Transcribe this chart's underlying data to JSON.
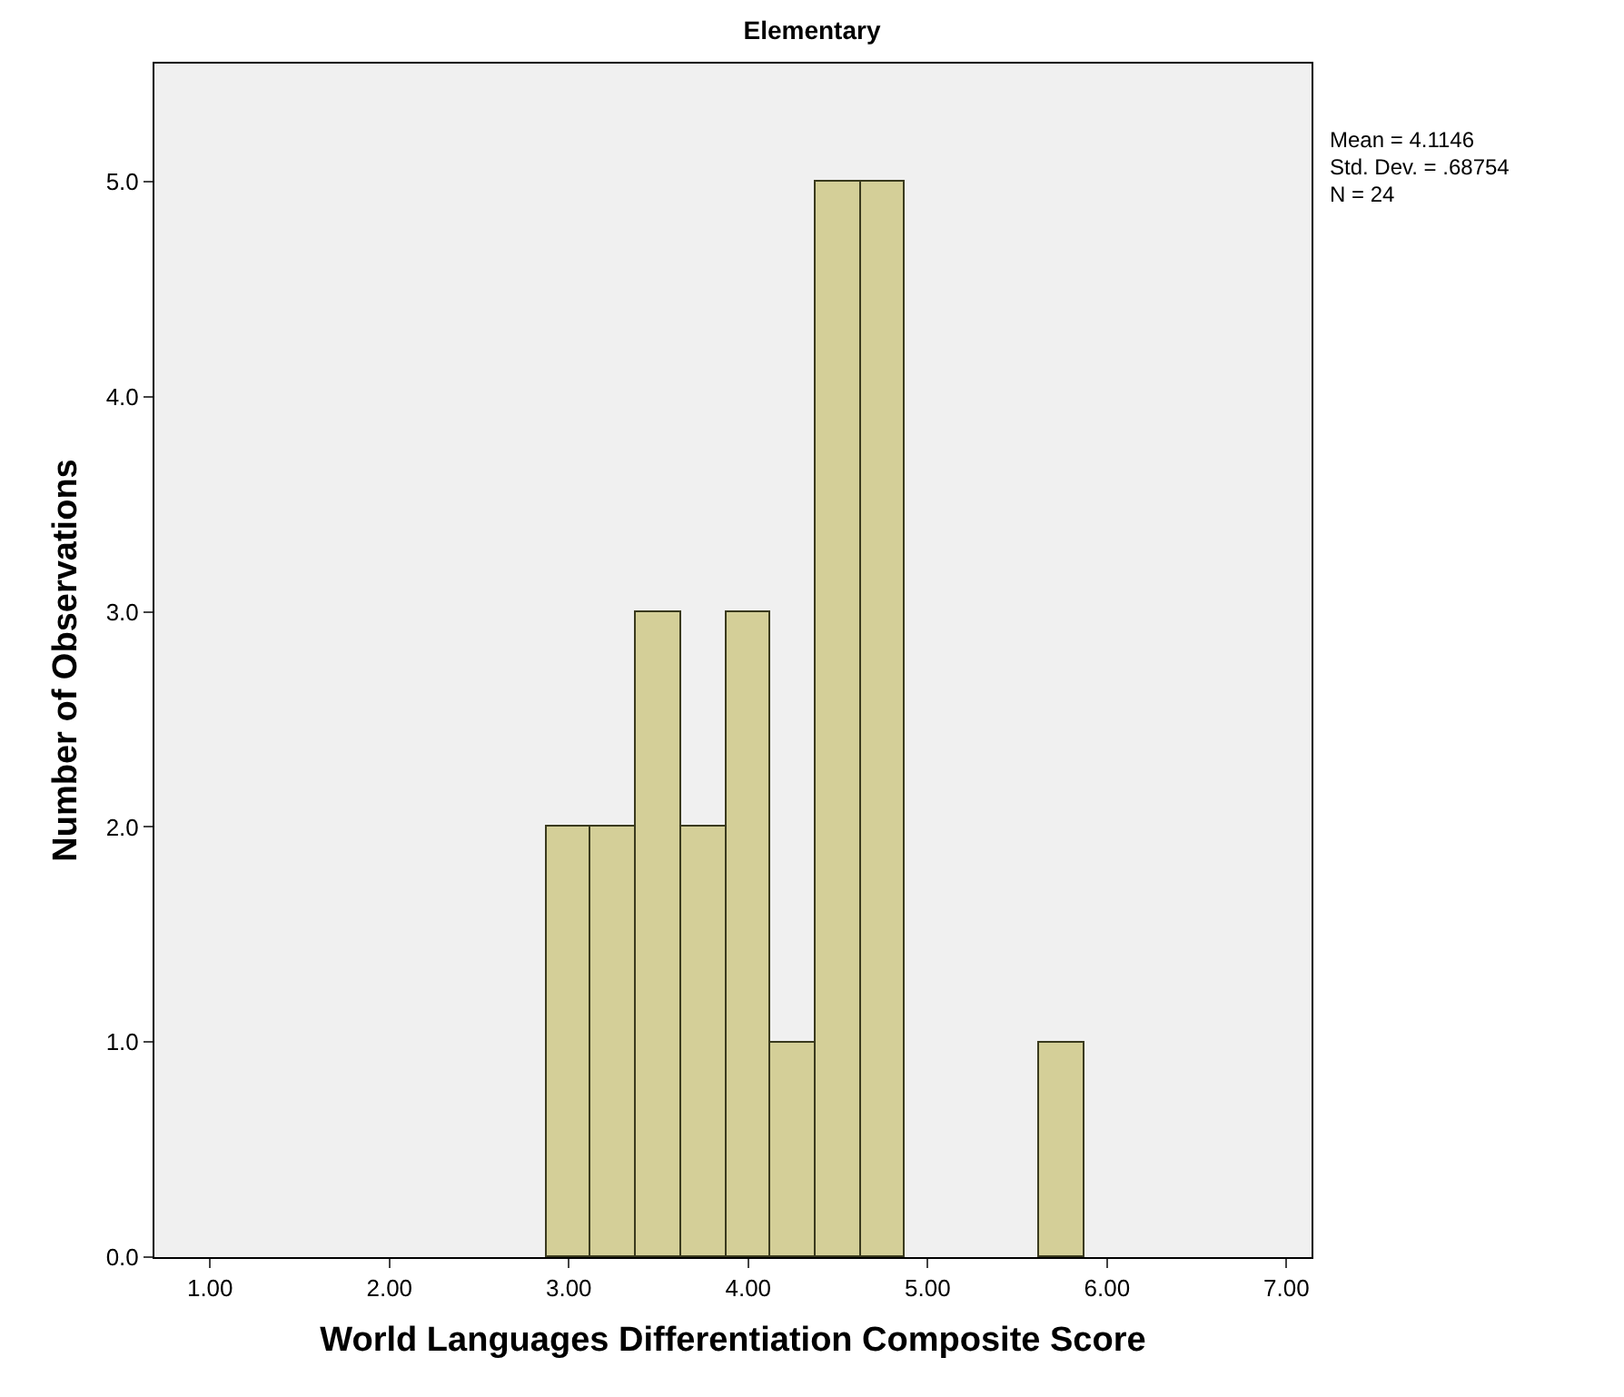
{
  "chart_data": {
    "type": "histogram",
    "title": "Elementary",
    "xlabel": "World Languages Differentiation Composite Score",
    "ylabel": "Number of Observations",
    "bins": [
      2.875,
      3.125,
      3.375,
      3.625,
      3.875,
      4.125,
      4.375,
      4.625,
      4.875,
      5.125,
      5.375,
      5.625,
      5.875
    ],
    "values": [
      2,
      2,
      3,
      2,
      3,
      1,
      5,
      5,
      0,
      0,
      0,
      1
    ],
    "color": "#d4cf98",
    "xlim": [
      0.69,
      7.14
    ],
    "ylim": [
      0,
      5.55
    ],
    "xticks": [
      {
        "value": 1,
        "label": "1.00"
      },
      {
        "value": 2,
        "label": "2.00"
      },
      {
        "value": 3,
        "label": "3.00"
      },
      {
        "value": 4,
        "label": "4.00"
      },
      {
        "value": 5,
        "label": "5.00"
      },
      {
        "value": 6,
        "label": "6.00"
      },
      {
        "value": 7,
        "label": "7.00"
      }
    ],
    "yticks": [
      {
        "value": 0,
        "label": "0.0"
      },
      {
        "value": 1,
        "label": "1.0"
      },
      {
        "value": 2,
        "label": "2.0"
      },
      {
        "value": 3,
        "label": "3.0"
      },
      {
        "value": 4,
        "label": "4.0"
      },
      {
        "value": 5,
        "label": "5.0"
      }
    ],
    "grid": false,
    "annotations": [
      "Mean = 4.1146",
      "Std. Dev. = .68754",
      "N = 24"
    ]
  }
}
